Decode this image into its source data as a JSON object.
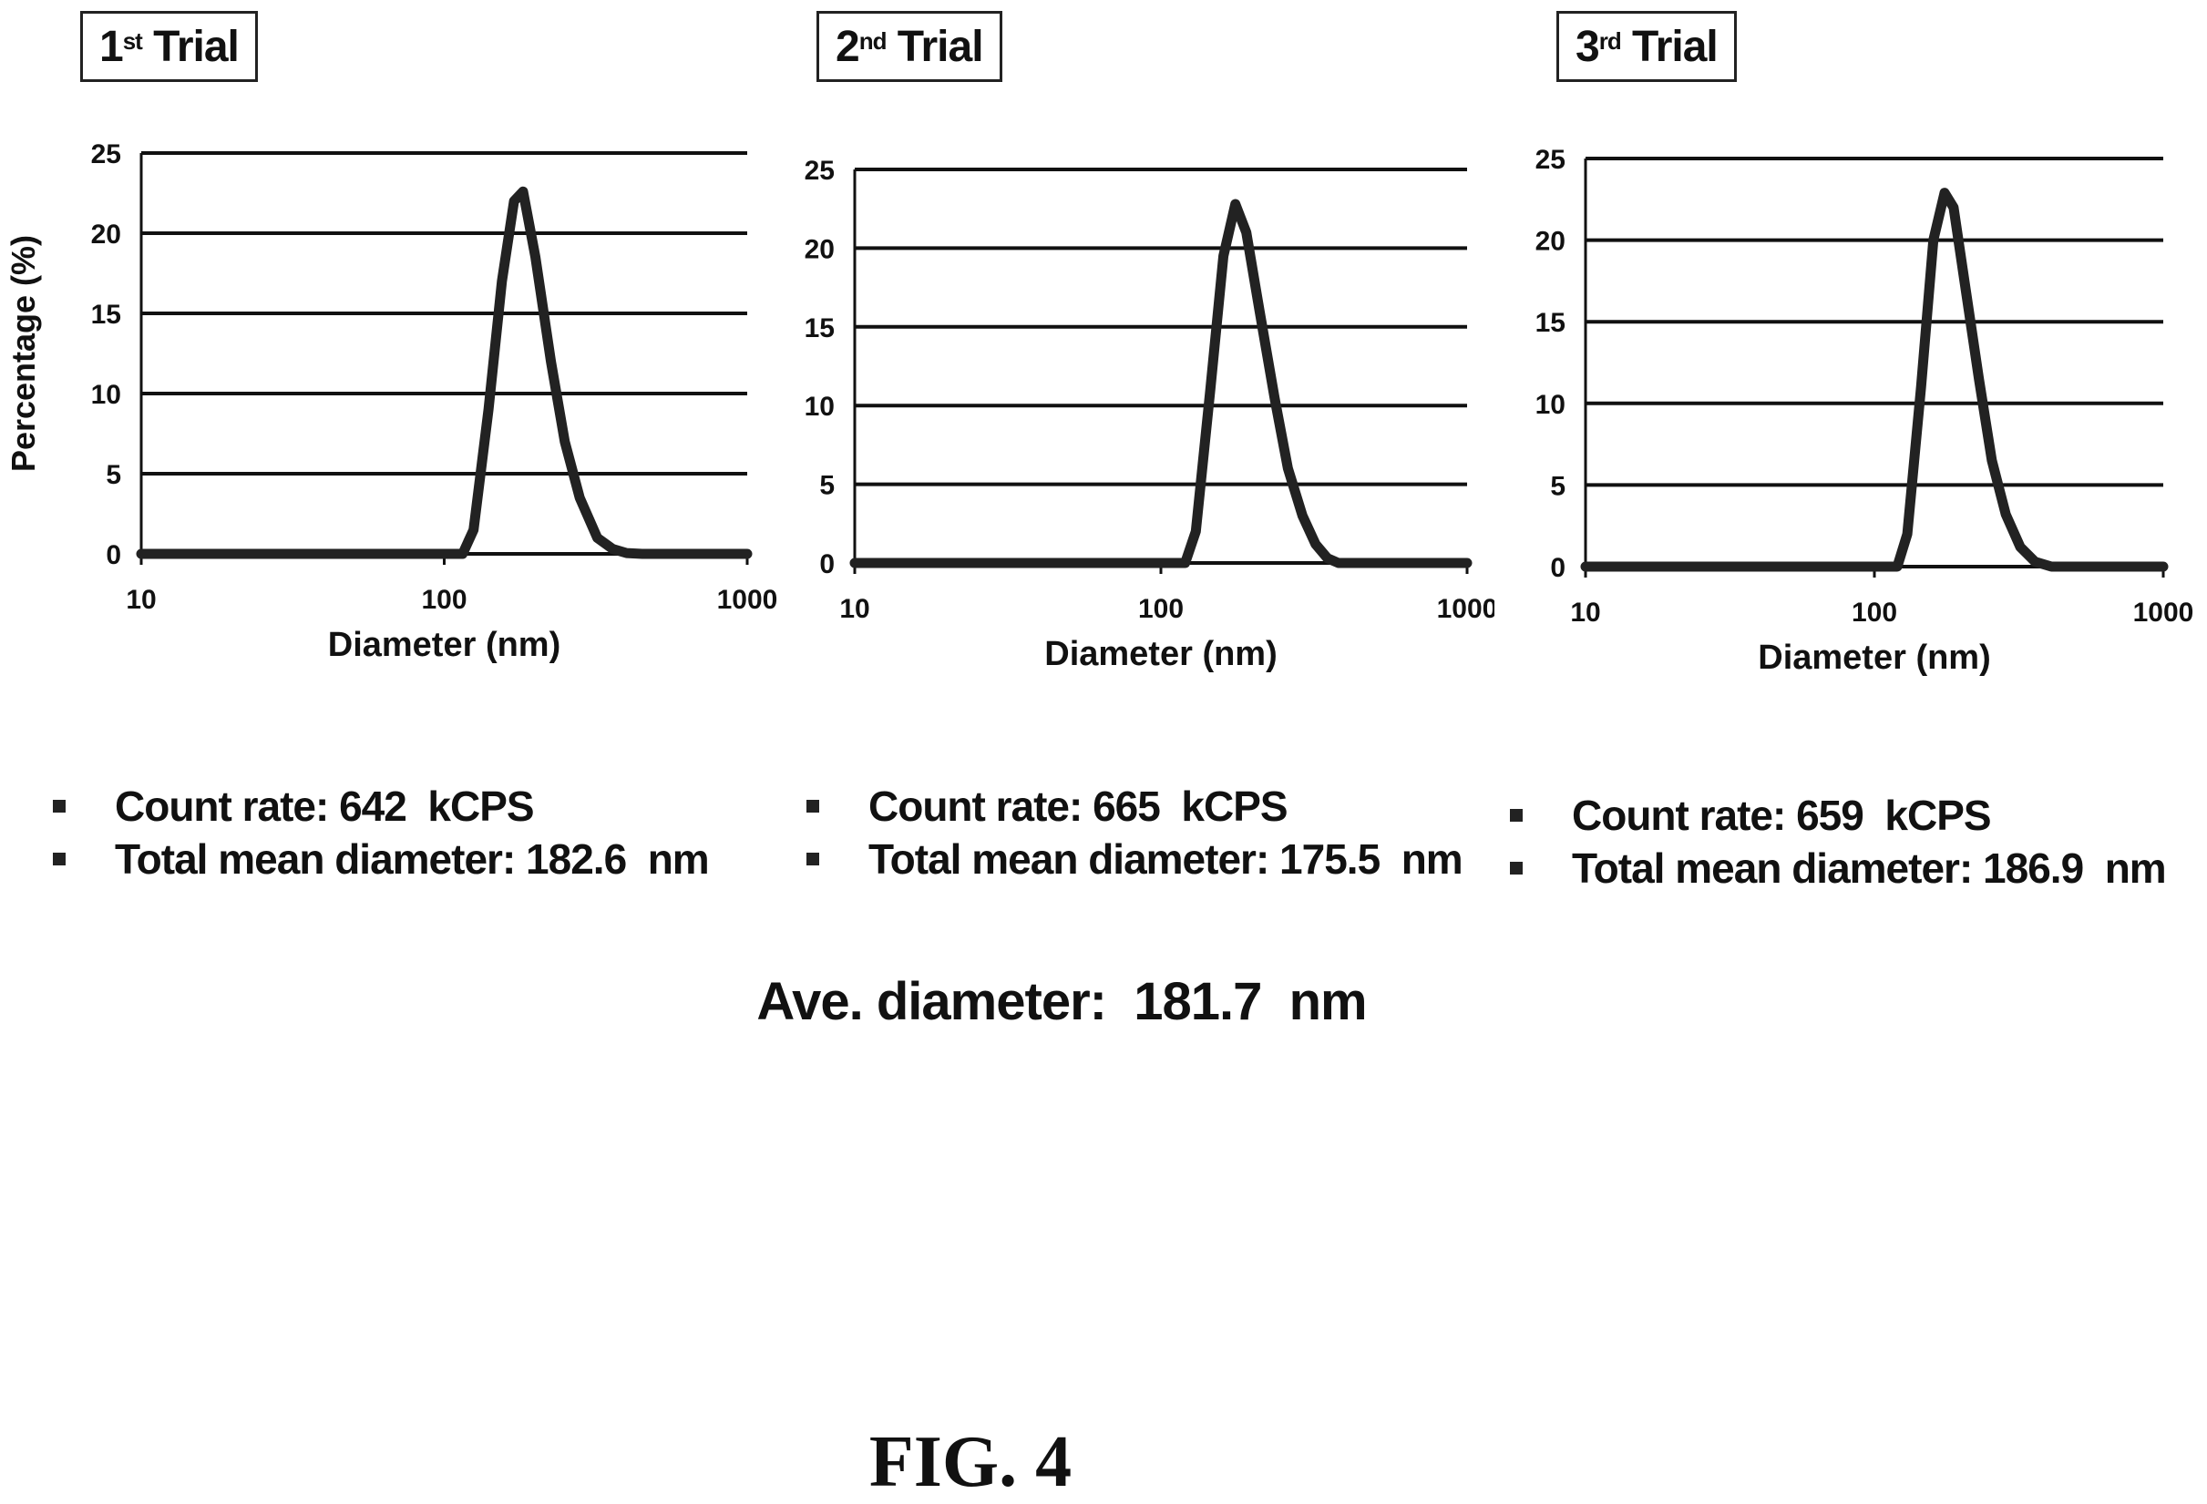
{
  "trials": [
    {
      "label_main": "1",
      "label_sup": "st",
      "label_rest": " Trial"
    },
    {
      "label_main": "2",
      "label_sup": "nd",
      "label_rest": " Trial"
    },
    {
      "label_main": "3",
      "label_sup": "rd",
      "label_rest": " Trial"
    }
  ],
  "stats": [
    {
      "count_rate": "Count rate: 642  kCPS",
      "mean_diameter": "Total mean diameter: 182.6  nm"
    },
    {
      "count_rate": "Count rate: 665  kCPS",
      "mean_diameter": "Total mean diameter: 175.5  nm"
    },
    {
      "count_rate": "Count rate: 659  kCPS",
      "mean_diameter": "Total mean diameter: 186.9  nm"
    }
  ],
  "average": "Ave. diameter:  181.7  nm",
  "figure_label": "FIG. 4",
  "chart_data": [
    {
      "type": "line",
      "title": "1st Trial",
      "xlabel": "Diameter (nm)",
      "ylabel": "Percentage (%)",
      "xscale": "log",
      "xlim": [
        10,
        1000
      ],
      "ylim": [
        0,
        25
      ],
      "xticks": [
        10,
        100,
        1000
      ],
      "yticks": [
        0,
        5,
        10,
        15,
        20,
        25
      ],
      "grid": "horizontal",
      "series": [
        {
          "x": [
            10,
            100,
            115,
            125,
            140,
            155,
            170,
            182,
            200,
            225,
            250,
            280,
            320,
            360,
            400,
            450,
            1000
          ],
          "y": [
            0,
            0,
            0,
            1.5,
            9,
            17,
            22,
            22.6,
            18.5,
            12,
            7,
            3.5,
            1,
            0.3,
            0.05,
            0,
            0
          ]
        }
      ]
    },
    {
      "type": "line",
      "title": "2nd Trial",
      "xlabel": "Diameter (nm)",
      "ylabel": "",
      "xscale": "log",
      "xlim": [
        10,
        1000
      ],
      "ylim": [
        0,
        25
      ],
      "xticks": [
        10,
        100,
        1000
      ],
      "yticks": [
        0,
        5,
        10,
        15,
        20,
        25
      ],
      "grid": "horizontal",
      "series": [
        {
          "x": [
            10,
            100,
            120,
            130,
            145,
            160,
            175,
            190,
            210,
            235,
            260,
            290,
            320,
            350,
            380,
            1000
          ],
          "y": [
            0,
            0,
            0,
            2,
            11,
            19.5,
            22.8,
            21,
            16,
            10.5,
            6,
            3,
            1.2,
            0.3,
            0,
            0
          ]
        }
      ]
    },
    {
      "type": "line",
      "title": "3rd Trial",
      "xlabel": "Diameter (nm)",
      "ylabel": "",
      "xscale": "log",
      "xlim": [
        10,
        1000
      ],
      "ylim": [
        0,
        25
      ],
      "xticks": [
        10,
        100,
        1000
      ],
      "yticks": [
        0,
        5,
        10,
        15,
        20,
        25
      ],
      "grid": "horizontal",
      "series": [
        {
          "x": [
            10,
            100,
            120,
            130,
            145,
            160,
            175,
            188,
            205,
            230,
            255,
            285,
            320,
            360,
            410,
            1000
          ],
          "y": [
            0,
            0,
            0,
            2,
            11,
            20,
            22.9,
            22,
            17.5,
            11.5,
            6.5,
            3.2,
            1.2,
            0.3,
            0,
            0
          ]
        }
      ]
    }
  ]
}
